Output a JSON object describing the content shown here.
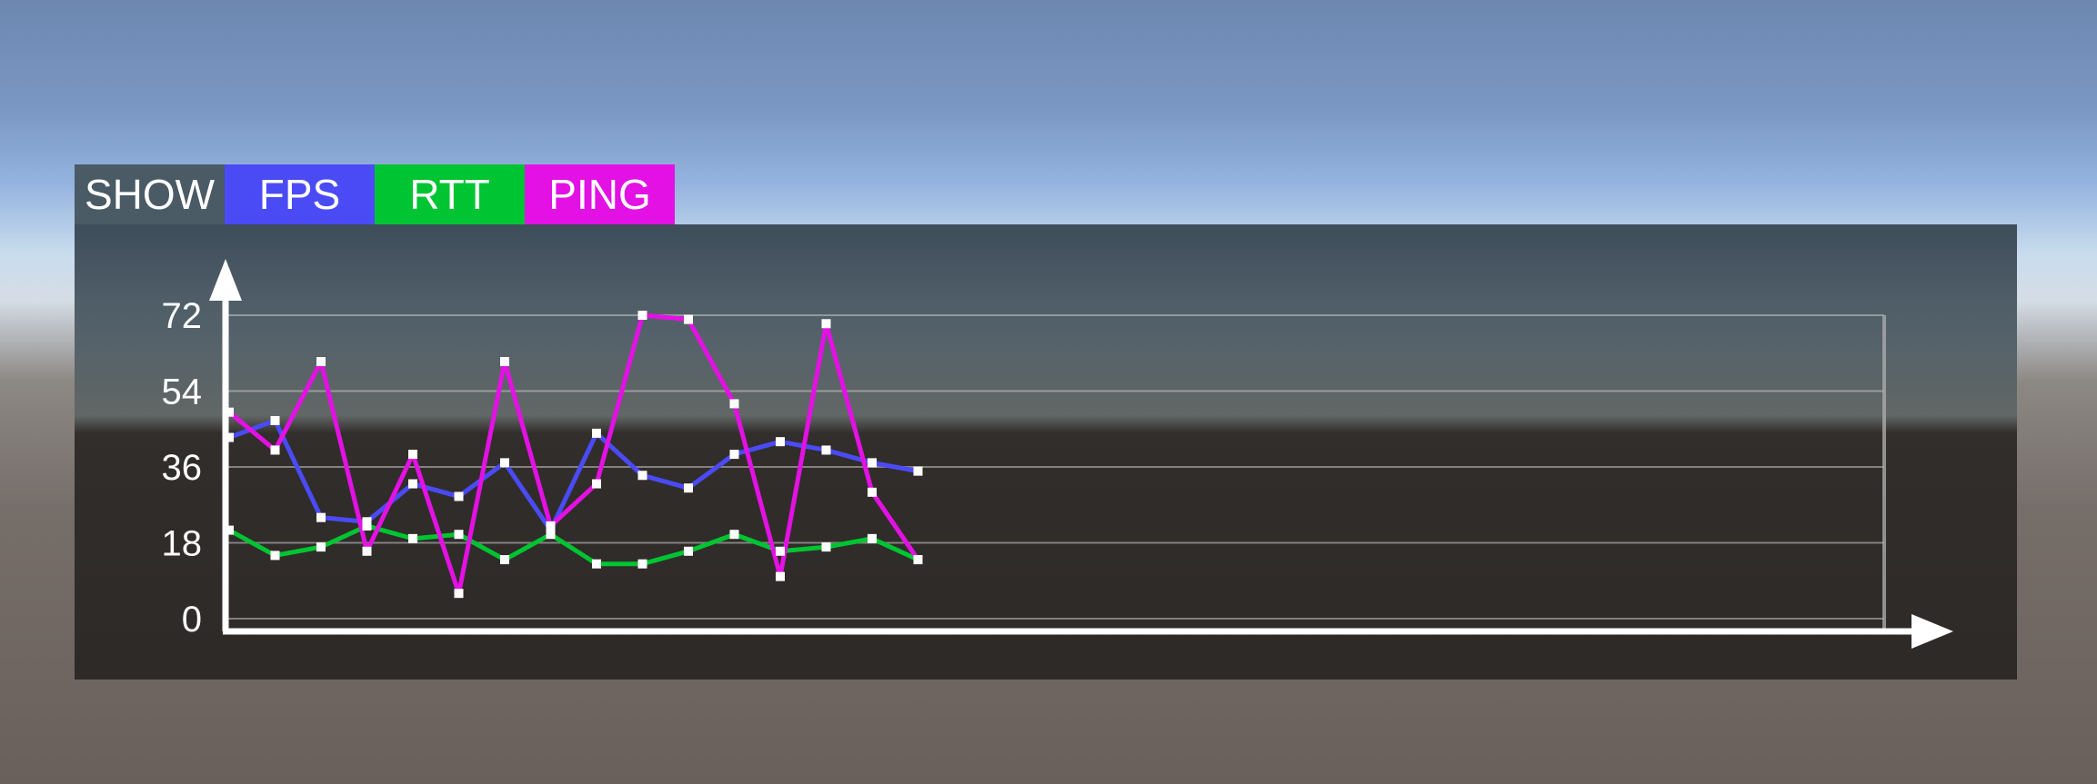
{
  "header": {
    "show_label": "SHOW",
    "buttons": [
      {
        "label": "FPS",
        "color": "#4b4bf5"
      },
      {
        "label": "RTT",
        "color": "#00c431"
      },
      {
        "label": "PING",
        "color": "#e311e3"
      }
    ]
  },
  "chart_data": {
    "type": "line",
    "title": "",
    "xlabel": "",
    "ylabel": "",
    "y_ticks": [
      0,
      18,
      36,
      54,
      72
    ],
    "ylim": [
      0,
      72
    ],
    "grid": true,
    "x": [
      0,
      1,
      2,
      3,
      4,
      5,
      6,
      7,
      8,
      9,
      10,
      11,
      12,
      13,
      14,
      15
    ],
    "x_capacity": 37,
    "series": [
      {
        "name": "FPS",
        "color": "#4b4bf5",
        "values": [
          43,
          47,
          24,
          23,
          32,
          29,
          37,
          21,
          44,
          34,
          31,
          39,
          42,
          40,
          37,
          35
        ]
      },
      {
        "name": "RTT",
        "color": "#00c431",
        "values": [
          21,
          15,
          17,
          22,
          19,
          20,
          14,
          20,
          13,
          13,
          16,
          20,
          16,
          17,
          19,
          14
        ]
      },
      {
        "name": "PING",
        "color": "#e311e3",
        "values": [
          49,
          40,
          61,
          16,
          39,
          6,
          61,
          22,
          32,
          72,
          71,
          51,
          10,
          70,
          30,
          14
        ]
      }
    ]
  }
}
